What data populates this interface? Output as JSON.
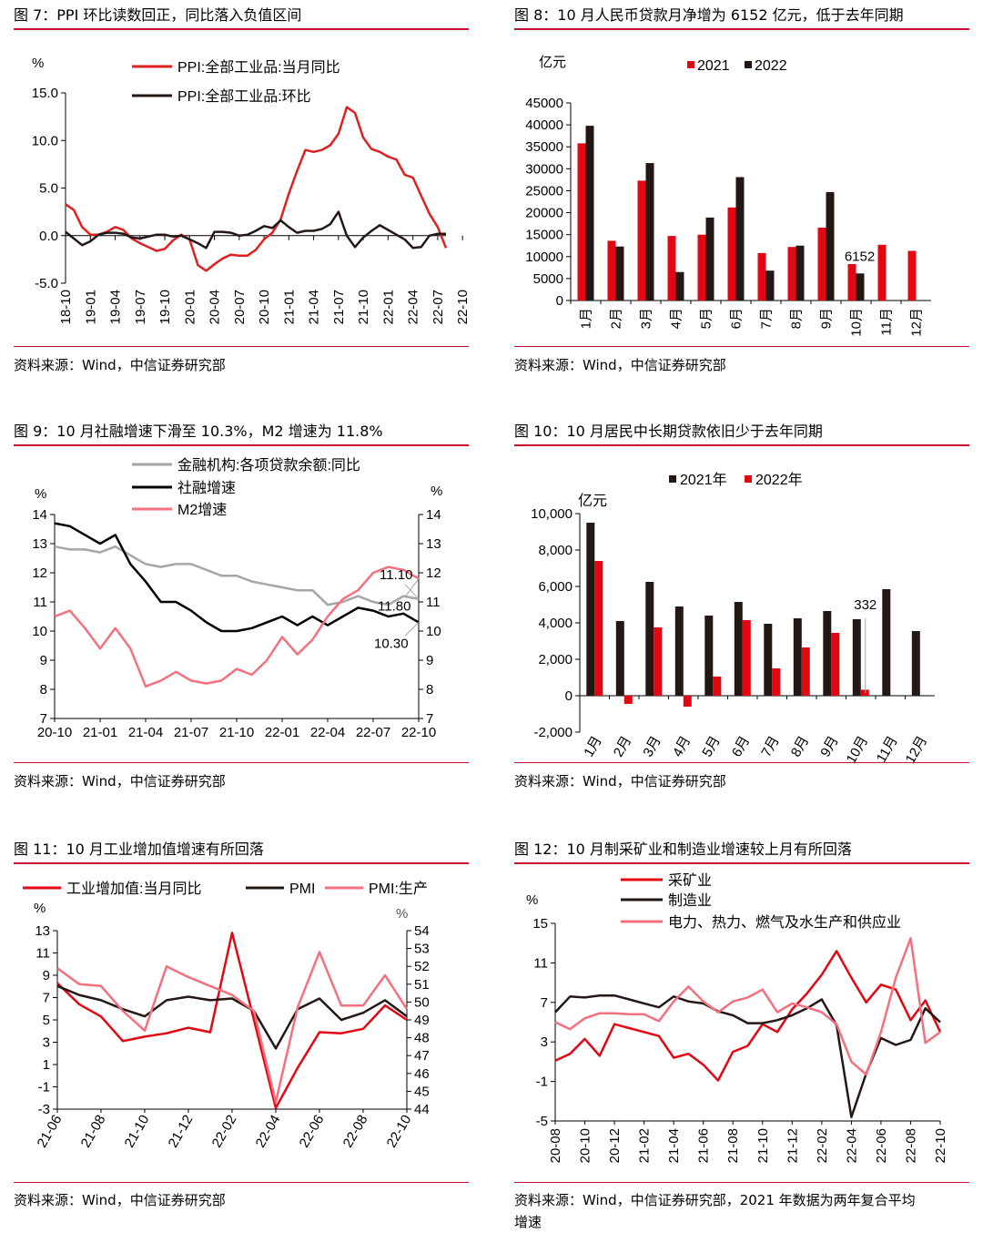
{
  "panels": [
    {
      "title": "图 7：PPI 环比读数回正，同比落入负值区间",
      "source": "资料来源：Wind，中信证券研究部",
      "chart_data": {
        "type": "line",
        "unit_left": "%",
        "ylim": [
          -5,
          15
        ],
        "yticks": [
          -5,
          0,
          5,
          10,
          15
        ],
        "ytick_labels": [
          "-5.0",
          "0.0",
          "5.0",
          "10.0",
          "15.0"
        ],
        "x_ticks": [
          "18-10",
          "19-01",
          "19-04",
          "19-07",
          "19-10",
          "20-01",
          "20-04",
          "20-07",
          "20-10",
          "21-01",
          "21-04",
          "21-07",
          "21-10",
          "22-01",
          "22-04",
          "22-07",
          "22-10"
        ],
        "legend": [
          "PPI:全部工业品:当月同比",
          "PPI:全部工业品:环比"
        ],
        "series": [
          {
            "name": "PPI:全部工业品:当月同比",
            "color": "#e02020",
            "values": [
              3.3,
              2.7,
              0.9,
              0.1,
              0.1,
              0.4,
              0.9,
              0.6,
              -0.3,
              -0.8,
              -1.2,
              -1.6,
              -1.4,
              -0.5,
              0.1,
              -0.4,
              -3.1,
              -3.7,
              -3.0,
              -2.4,
              -2.0,
              -2.1,
              -2.1,
              -1.5,
              -0.4,
              0.3,
              1.7,
              4.4,
              6.8,
              9.0,
              8.8,
              9.0,
              9.5,
              10.7,
              13.5,
              12.9,
              10.3,
              9.1,
              8.8,
              8.3,
              8.0,
              6.4,
              6.1,
              4.2,
              2.3,
              0.9,
              -1.3
            ]
          },
          {
            "name": "PPI:全部工业品:环比",
            "color": "#231815",
            "values": [
              0.4,
              -0.3,
              -1.0,
              -0.6,
              0.1,
              0.3,
              0.3,
              0.2,
              -0.2,
              -0.3,
              -0.1,
              0.1,
              0.1,
              -0.1,
              0.0,
              -0.4,
              -0.8,
              -1.3,
              0.4,
              0.4,
              0.3,
              0.0,
              0.1,
              0.5,
              1.0,
              0.8,
              1.6,
              0.9,
              0.3,
              0.5,
              0.5,
              0.7,
              1.2,
              2.5,
              0.0,
              -1.2,
              -0.2,
              0.5,
              1.1,
              0.6,
              0.1,
              -0.4,
              -1.3,
              -1.2,
              0.0,
              0.2,
              0.2
            ]
          }
        ]
      }
    },
    {
      "title": "图 8：10 月人民币贷款月净增为 6152 亿元，低于去年同期",
      "source": "资料来源：Wind，中信证券研究部",
      "chart_data": {
        "type": "bar",
        "unit_left": "亿元",
        "ylim": [
          0,
          45000
        ],
        "yticks": [
          0,
          5000,
          10000,
          15000,
          20000,
          25000,
          30000,
          35000,
          40000,
          45000
        ],
        "ytick_labels": [
          "0",
          "5000",
          "10000",
          "15000",
          "20000",
          "25000",
          "30000",
          "35000",
          "40000",
          "45000"
        ],
        "categories": [
          "1月",
          "2月",
          "3月",
          "4月",
          "5月",
          "6月",
          "7月",
          "8月",
          "9月",
          "10月",
          "11月",
          "12月"
        ],
        "annotation": "6152",
        "series": [
          {
            "name": "2021",
            "color": "#e30613",
            "values": [
              35800,
              13600,
              27300,
              14700,
              15000,
              21200,
              10800,
              12200,
              16600,
              8300,
              12700,
              11300
            ]
          },
          {
            "name": "2022",
            "color": "#231815",
            "values": [
              39800,
              12300,
              31300,
              6500,
              18900,
              28100,
              6800,
              12500,
              24700,
              6152,
              null,
              null
            ]
          }
        ]
      }
    },
    {
      "title": "图 9：10 月社融增速下滑至 10.3%，M2 增速为 11.8%",
      "source": "资料来源：Wind，中信证券研究部",
      "chart_data": {
        "type": "line",
        "unit_left": "%",
        "unit_right": "%",
        "ylim": [
          7,
          14
        ],
        "yticks": [
          7,
          8,
          9,
          10,
          11,
          12,
          13,
          14
        ],
        "ytick_labels": [
          "7",
          "8",
          "9",
          "10",
          "11",
          "12",
          "13",
          "14"
        ],
        "x_ticks": [
          "20-10",
          "21-01",
          "21-04",
          "21-07",
          "21-10",
          "22-01",
          "22-04",
          "22-07",
          "22-10"
        ],
        "legend": [
          "金融机构:各项贷款余额:同比",
          "社融增速",
          "M2增速"
        ],
        "annotations": [
          "11.10",
          "11.80",
          "10.30"
        ],
        "series": [
          {
            "name": "金融机构:各项贷款余额:同比",
            "color": "#a6a6a6",
            "values": [
              12.9,
              12.8,
              12.8,
              12.7,
              12.9,
              12.6,
              12.3,
              12.2,
              12.3,
              12.3,
              12.1,
              11.9,
              11.9,
              11.7,
              11.6,
              11.5,
              11.4,
              11.4,
              10.9,
              11.0,
              11.2,
              11.0,
              10.9,
              11.2,
              11.1
            ]
          },
          {
            "name": "社融增速",
            "color": "#000000",
            "values": [
              13.7,
              13.6,
              13.3,
              13.0,
              13.3,
              12.3,
              11.7,
              11.0,
              11.0,
              10.7,
              10.3,
              10.0,
              10.0,
              10.1,
              10.3,
              10.5,
              10.2,
              10.5,
              10.2,
              10.5,
              10.8,
              10.7,
              10.5,
              10.6,
              10.3
            ]
          },
          {
            "name": "M2增速",
            "color": "#f4707e",
            "values": [
              10.5,
              10.7,
              10.1,
              9.4,
              10.1,
              9.4,
              8.1,
              8.3,
              8.6,
              8.3,
              8.2,
              8.3,
              8.7,
              8.5,
              9.0,
              9.8,
              9.2,
              9.7,
              10.5,
              11.1,
              11.4,
              12.0,
              12.2,
              12.1,
              11.8
            ]
          }
        ]
      }
    },
    {
      "title": "图 10：10 月居民中长期贷款依旧少于去年同期",
      "source": "资料来源：Wind，中信证券研究部",
      "chart_data": {
        "type": "bar",
        "unit_left": "亿元",
        "ylim": [
          -2000,
          10000
        ],
        "yticks": [
          -2000,
          0,
          2000,
          4000,
          6000,
          8000,
          10000
        ],
        "ytick_labels": [
          "-2,000",
          "0",
          "2,000",
          "4,000",
          "6,000",
          "8,000",
          "10,000"
        ],
        "categories": [
          "1月",
          "2月",
          "3月",
          "4月",
          "5月",
          "6月",
          "7月",
          "8月",
          "9月",
          "10月",
          "11月",
          "12月"
        ],
        "annotation": "332",
        "series": [
          {
            "name": "2021年",
            "color": "#231815",
            "values": [
              9500,
              4100,
              6250,
              4900,
              4400,
              5150,
              3950,
              4250,
              4650,
              4200,
              5850,
              3550
            ]
          },
          {
            "name": "2022年",
            "color": "#e30613",
            "values": [
              7400,
              -450,
              3750,
              -600,
              1050,
              4150,
              1500,
              2650,
              3450,
              332,
              null,
              null
            ]
          }
        ]
      }
    },
    {
      "title": "图 11：10 月工业增加值增速有所回落",
      "source": "资料来源：Wind，中信证券研究部",
      "chart_data": {
        "type": "line",
        "unit_left": "%",
        "unit_right": "%",
        "ylim": [
          -3,
          13
        ],
        "y2lim": [
          44,
          54
        ],
        "yticks": [
          -3,
          -1,
          1,
          3,
          5,
          7,
          9,
          11,
          13
        ],
        "ytick_labels": [
          "-3",
          "-1",
          "1",
          "3",
          "5",
          "7",
          "9",
          "11",
          "13"
        ],
        "y2ticks": [
          44,
          45,
          46,
          47,
          48,
          49,
          50,
          51,
          52,
          53,
          54
        ],
        "y2tick_labels": [
          "44",
          "45",
          "46",
          "47",
          "48",
          "49",
          "50",
          "51",
          "52",
          "53",
          "54"
        ],
        "x_ticks": [
          "21-06",
          "21-08",
          "21-10",
          "21-12",
          "22-02",
          "22-04",
          "22-06",
          "22-08",
          "22-10"
        ],
        "legend": [
          "工业增加值:当月同比",
          "PMI",
          "PMI:生产"
        ],
        "series": [
          {
            "name": "工业增加值:当月同比",
            "color": "#e30613",
            "axis": "left",
            "values": [
              8.3,
              6.4,
              5.3,
              3.1,
              3.5,
              3.8,
              4.3,
              3.9,
              12.8,
              5.0,
              -2.9,
              0.7,
              3.9,
              3.8,
              4.2,
              6.3,
              5.0
            ]
          },
          {
            "name": "PMI",
            "color": "#231815",
            "axis": "right",
            "values": [
              50.9,
              50.4,
              50.1,
              49.6,
              49.2,
              50.1,
              50.3,
              50.1,
              50.2,
              49.5,
              47.4,
              49.6,
              50.2,
              49.0,
              49.4,
              50.1,
              49.2
            ]
          },
          {
            "name": "PMI:生产",
            "color": "#f4707e",
            "axis": "right",
            "values": [
              51.9,
              51.0,
              50.9,
              49.5,
              48.4,
              52.0,
              51.4,
              50.9,
              50.4,
              49.5,
              44.4,
              49.7,
              52.8,
              49.8,
              49.8,
              51.5,
              49.6
            ]
          }
        ]
      }
    },
    {
      "title": "图 12：10 月制采矿业和制造业增速较上月有所回落",
      "source": "资料来源：Wind，中信证券研究部，2021 年数据为两年复合平均",
      "source_line2": "增速",
      "chart_data": {
        "type": "line",
        "unit_left": "%",
        "ylim": [
          -5,
          15
        ],
        "yticks": [
          -5,
          -1,
          3,
          7,
          11,
          15
        ],
        "ytick_labels": [
          "-5",
          "-1",
          "3",
          "7",
          "11",
          "15"
        ],
        "x_ticks": [
          "20-08",
          "20-10",
          "20-12",
          "21-02",
          "21-04",
          "21-06",
          "21-08",
          "21-10",
          "21-12",
          "22-02",
          "22-04",
          "22-06",
          "22-08",
          "22-10"
        ],
        "legend": [
          "采矿业",
          "制造业",
          "电力、热力、燃气及水生产和供应业"
        ],
        "series": [
          {
            "name": "采矿业",
            "color": "#e30613",
            "values": [
              1.1,
              1.8,
              3.3,
              1.6,
              4.8,
              4.4,
              4.0,
              3.6,
              1.4,
              1.8,
              0.7,
              -0.9,
              2.0,
              2.6,
              4.8,
              4.0,
              6.3,
              7.9,
              9.8,
              12.2,
              9.5,
              7.0,
              8.8,
              8.3,
              5.2,
              7.2,
              4.0
            ]
          },
          {
            "name": "制造业",
            "color": "#231815",
            "values": [
              6.0,
              7.6,
              7.5,
              7.7,
              7.7,
              7.3,
              6.9,
              6.5,
              7.6,
              7.1,
              6.9,
              6.1,
              5.7,
              4.9,
              4.9,
              5.2,
              5.7,
              6.4,
              7.3,
              4.7,
              -4.6,
              -0.2,
              3.4,
              2.7,
              3.2,
              6.4,
              5.0
            ]
          },
          {
            "name": "电力、热力、燃气及水生产和供应业",
            "color": "#f4707e",
            "values": [
              5.0,
              4.3,
              5.4,
              5.9,
              5.9,
              5.8,
              5.8,
              5.1,
              7.1,
              8.6,
              7.1,
              6.0,
              7.1,
              7.5,
              8.3,
              6.0,
              6.9,
              6.5,
              6.0,
              4.8,
              1.0,
              -0.3,
              4.0,
              9.5,
              13.5,
              2.9,
              4.0
            ]
          }
        ]
      }
    }
  ]
}
